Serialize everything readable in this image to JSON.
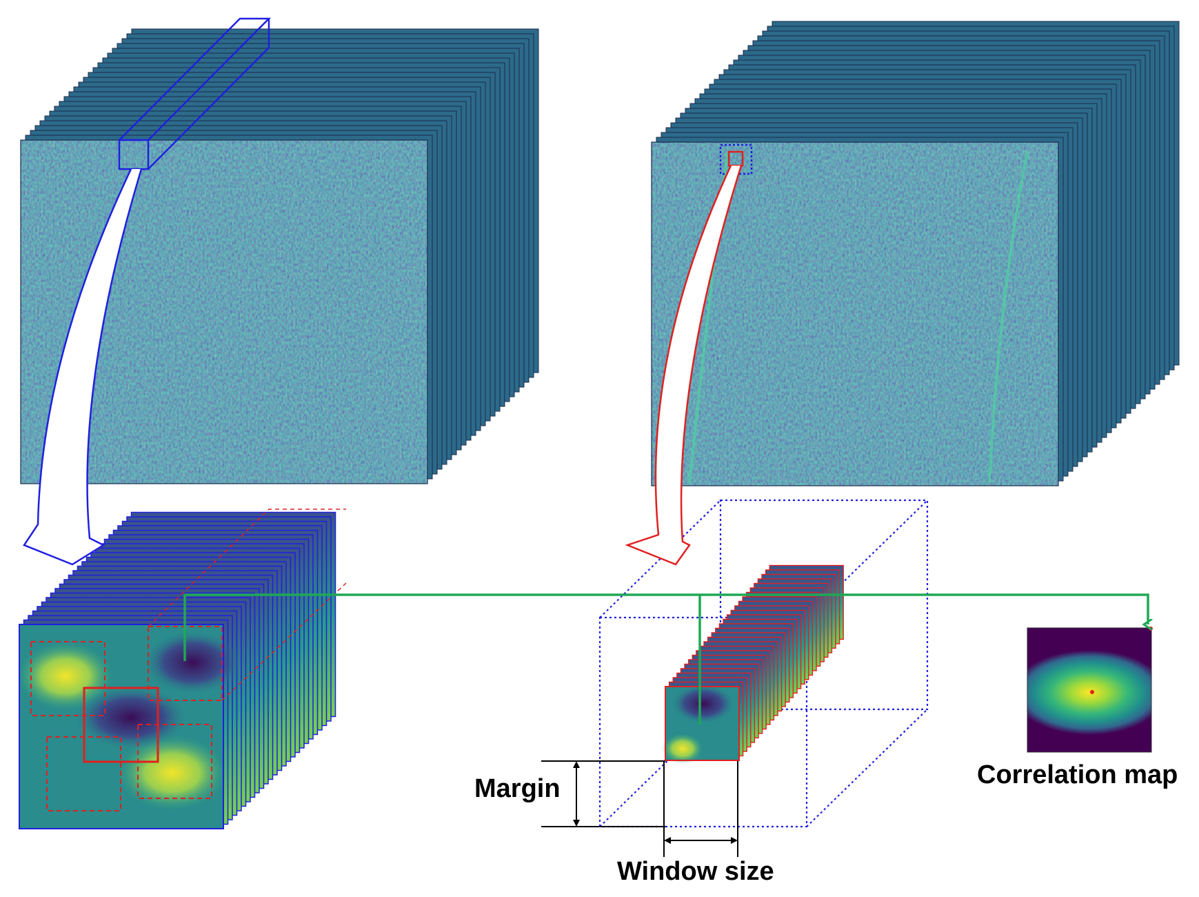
{
  "labels": {
    "margin": "Margin",
    "window_size": "Window size",
    "correlation_map": "Correlation map"
  },
  "colors": {
    "reference_stack_outline": "#1f1fe0",
    "search_window_outline": "#e02020",
    "correlation_arrow": "#1fa855",
    "search_region_dotted": "#1f1fe0",
    "viridis_dark": "#440154",
    "viridis_mid": "#21908c",
    "viridis_light": "#fde725"
  }
}
